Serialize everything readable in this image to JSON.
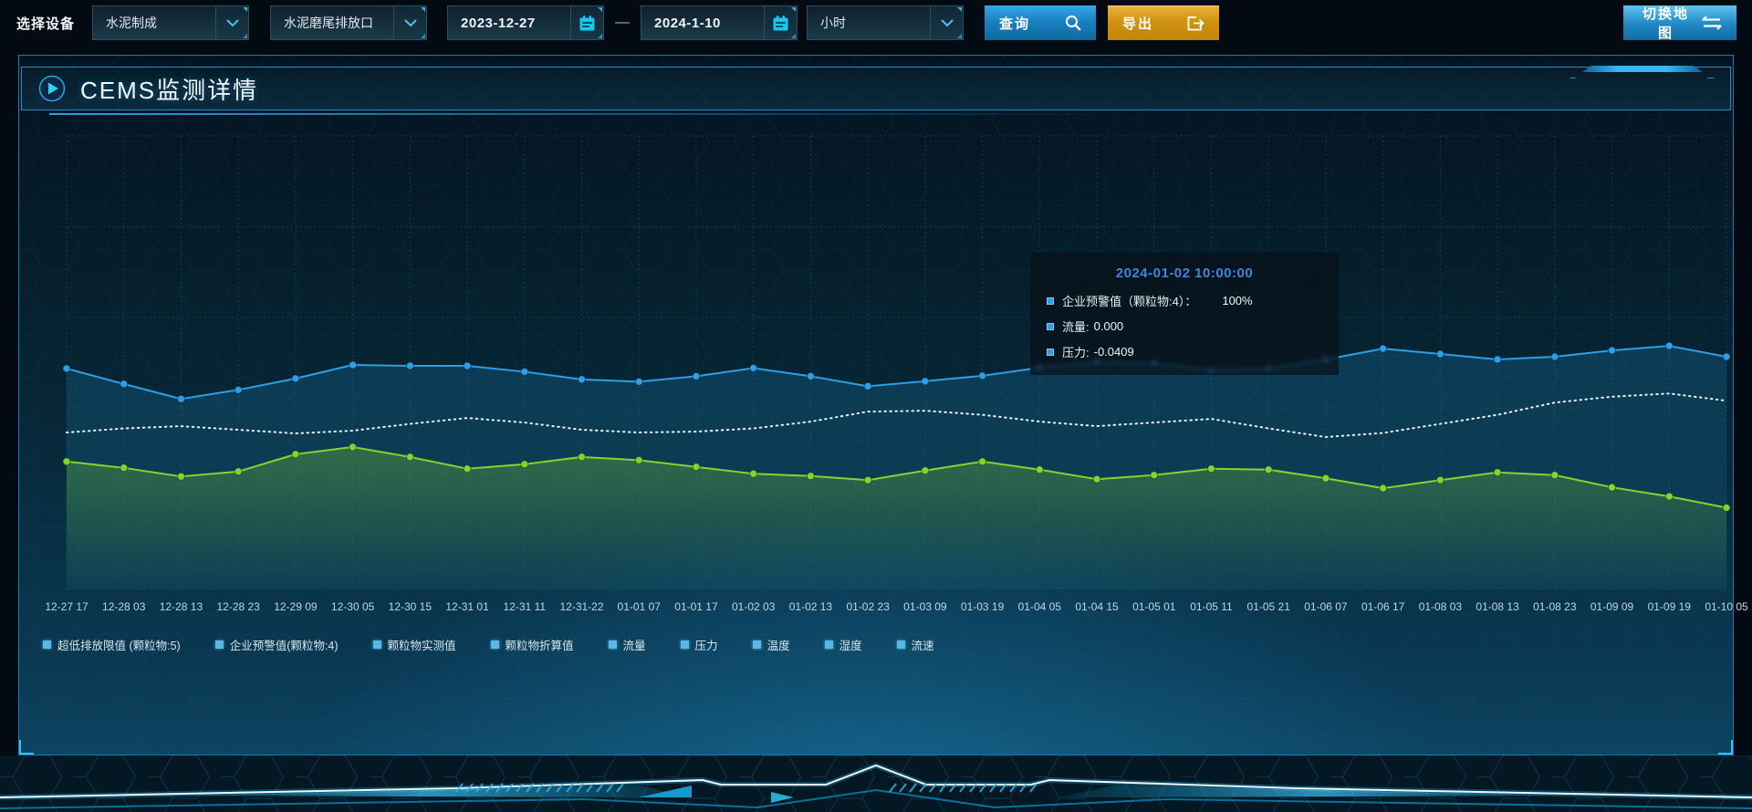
{
  "toolbar": {
    "device_label": "选择设备",
    "device_value": "水泥制成",
    "outlet_value": "水泥磨尾排放口",
    "date_start": "2023-12-27",
    "date_separator": "—",
    "date_end": "2024-1-10",
    "interval_value": "小时",
    "query_label": "查询",
    "export_label": "导出",
    "switch_map_label": "切换地图"
  },
  "panel": {
    "title": "CEMS监测详情"
  },
  "tooltip": {
    "title": "2024-01-02 10:00:00",
    "rows": [
      {
        "label": "企业预警值（颗粒物:4）：",
        "value": "100%",
        "wide": true
      },
      {
        "label": "流量:",
        "value": "0.000",
        "wide": false
      },
      {
        "label": "压力:",
        "value": "-0.0409",
        "wide": false
      }
    ]
  },
  "legend": {
    "marker_color": "#59b8e8",
    "items": [
      "超低排放限值 (颗粒物:5)",
      "企业预警值(颗粒物:4)",
      "颗粒物实测值",
      "颗粒物折算值",
      "流量",
      "压力",
      "温度",
      "湿度",
      "流速"
    ]
  },
  "chart_data": {
    "type": "line",
    "title": "CEMS监测详情",
    "xlabel": "",
    "ylabel": "",
    "y_axis_visible": false,
    "grid": "dashed",
    "legend_position": "bottom-left",
    "x_labels": [
      "12-27 17",
      "12-28 03",
      "12-28 13",
      "12-28 23",
      "12-29 09",
      "12-30 05",
      "12-30 15",
      "12-31 01",
      "12-31 11",
      "12-31-22",
      "01-01 07",
      "01-01 17",
      "01-02 03",
      "01-02 13",
      "01-02 23",
      "01-03 09",
      "01-03 19",
      "01-04 05",
      "01-04 15",
      "01-05 01",
      "01-05 11",
      "01-05 21",
      "01-06 07",
      "01-06 17",
      "01-08 03",
      "01-08 13",
      "01-08 23",
      "01-09 09",
      "01-09 19",
      "01-10 05"
    ],
    "value_unit": "percent_of_plot_height_from_bottom",
    "series": [
      {
        "name": "企业预警值(颗粒物:4)",
        "color": "#2e9fe6",
        "style": "solid",
        "markers": true,
        "area": "blue",
        "values": [
          48.7,
          45.3,
          42.0,
          44.0,
          46.5,
          49.5,
          49.3,
          49.3,
          48.0,
          46.3,
          45.8,
          47.0,
          48.8,
          47.0,
          44.8,
          45.9,
          47.1,
          48.9,
          50.1,
          49.9,
          48.3,
          48.7,
          50.7,
          53.1,
          51.9,
          50.7,
          51.3,
          52.7,
          53.7,
          51.3
        ]
      },
      {
        "name": "流量",
        "color": "#e8f2f7",
        "style": "dotted",
        "markers": false,
        "area": null,
        "values": [
          34.6,
          35.5,
          36.0,
          35.2,
          34.4,
          35.0,
          36.5,
          37.8,
          36.8,
          35.2,
          34.6,
          34.8,
          35.5,
          37.0,
          39.2,
          39.4,
          38.5,
          37.0,
          36.0,
          36.8,
          37.6,
          35.5,
          33.6,
          34.5,
          36.5,
          38.5,
          41.2,
          42.5,
          43.2,
          41.6
        ]
      },
      {
        "name": "压力",
        "color": "#7ed62f",
        "style": "solid",
        "markers": true,
        "area": "green",
        "values": [
          28.2,
          26.8,
          24.9,
          26.0,
          29.8,
          31.4,
          29.2,
          26.6,
          27.6,
          29.2,
          28.5,
          27.0,
          25.5,
          25.0,
          24.1,
          26.2,
          28.2,
          26.4,
          24.3,
          25.2,
          26.6,
          26.4,
          24.5,
          22.3,
          24.1,
          25.8,
          25.2,
          22.5,
          20.5,
          18.0
        ]
      }
    ],
    "hover_point": "2024-01-02 10:00:00"
  },
  "colors": {
    "accent_blue": "#2fa6e4",
    "accent_orange": "#d0920f",
    "panel_border": "#1779ad",
    "tooltip_title": "#3d86e0",
    "series_blue": "#2e9fe6",
    "series_white": "#e8f2f7",
    "series_green": "#7ed62f",
    "legend_marker": "#59b8e8"
  }
}
